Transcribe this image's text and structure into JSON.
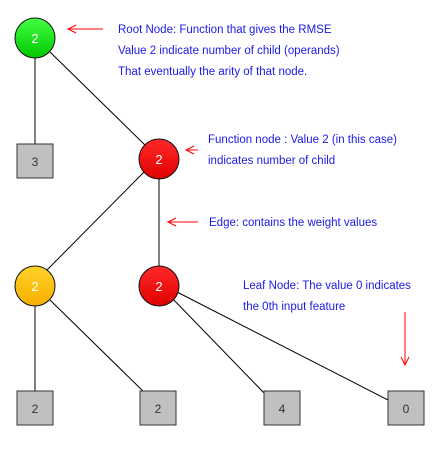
{
  "colors": {
    "root": "#11dd11",
    "function": "#ff0000",
    "function_alt": "#ffc20e",
    "leaf": "#c0c0c0",
    "edge": "#000000",
    "arrow": "#ff0000",
    "annotation_text": "#1a1ae6"
  },
  "nodes": {
    "root": {
      "value": "2"
    },
    "function_right": {
      "value": "2"
    },
    "function_left": {
      "value": "2"
    },
    "function_bottom": {
      "value": "2"
    }
  },
  "leaves": {
    "leaf_root": {
      "value": "3"
    },
    "leaf_1": {
      "value": "2"
    },
    "leaf_2": {
      "value": "2"
    },
    "leaf_3": {
      "value": "4"
    },
    "leaf_4": {
      "value": "0"
    }
  },
  "annotations": {
    "root_node": [
      "Root Node: Function that gives the RMSE",
      "Value 2 indicate number of child (operands)",
      "That eventually the arity of that node."
    ],
    "function_node": [
      "Function node : Value 2 (in this case)",
      "indicates number of child"
    ],
    "edge": [
      "Edge: contains the weight values"
    ],
    "leaf_node": [
      "Leaf Node: The value 0 indicates",
      "the 0th input feature"
    ]
  }
}
